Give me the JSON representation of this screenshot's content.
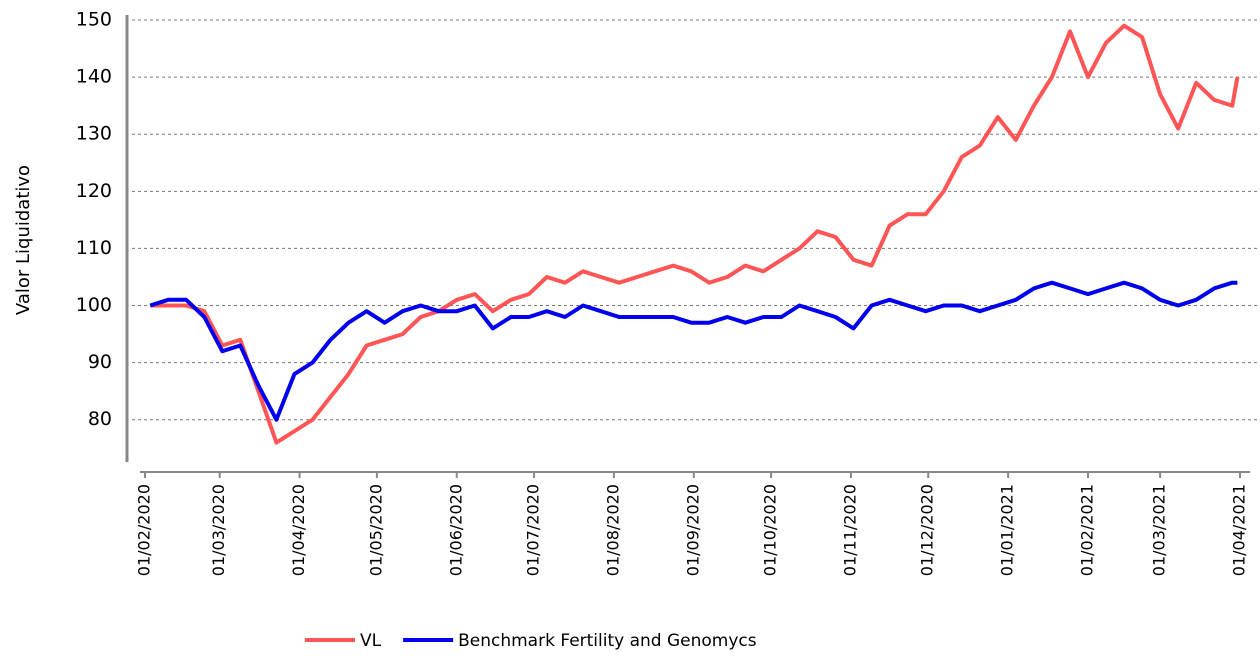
{
  "chart_data": {
    "type": "line",
    "y_label": "Valor Liquidativo",
    "x": [
      "03/02/2020",
      "10/02/2020",
      "17/02/2020",
      "24/02/2020",
      "02/03/2020",
      "09/03/2020",
      "16/03/2020",
      "23/03/2020",
      "30/03/2020",
      "06/04/2020",
      "13/04/2020",
      "20/04/2020",
      "27/04/2020",
      "04/05/2020",
      "11/05/2020",
      "18/05/2020",
      "25/05/2020",
      "01/06/2020",
      "08/06/2020",
      "15/06/2020",
      "22/06/2020",
      "29/06/2020",
      "06/07/2020",
      "13/07/2020",
      "20/07/2020",
      "27/07/2020",
      "03/08/2020",
      "10/08/2020",
      "17/08/2020",
      "24/08/2020",
      "31/08/2020",
      "07/09/2020",
      "14/09/2020",
      "21/09/2020",
      "28/09/2020",
      "05/10/2020",
      "12/10/2020",
      "19/10/2020",
      "26/10/2020",
      "02/11/2020",
      "09/11/2020",
      "16/11/2020",
      "23/11/2020",
      "30/11/2020",
      "07/12/2020",
      "14/12/2020",
      "21/12/2020",
      "28/12/2020",
      "04/01/2021",
      "11/01/2021",
      "18/01/2021",
      "25/01/2021",
      "01/02/2021",
      "08/02/2021",
      "15/02/2021",
      "22/02/2021",
      "01/03/2021",
      "08/03/2021",
      "15/03/2021",
      "22/03/2021",
      "29/03/2021",
      "31/03/2021"
    ],
    "series": [
      {
        "name": "VL",
        "color": "#ff5555",
        "values": [
          100,
          100,
          100,
          99,
          93,
          94,
          85,
          76,
          78,
          80,
          84,
          88,
          93,
          94,
          95,
          98,
          99,
          101,
          102,
          99,
          101,
          102,
          105,
          104,
          106,
          105,
          104,
          105,
          106,
          107,
          106,
          104,
          105,
          107,
          106,
          108,
          110,
          113,
          112,
          108,
          107,
          114,
          116,
          116,
          120,
          126,
          128,
          133,
          129,
          135,
          140,
          148,
          140,
          146,
          149,
          147,
          137,
          131,
          139,
          136,
          135,
          140
        ]
      },
      {
        "name": "Benchmark Fertility and Genomycs",
        "color": "#0000ee",
        "values": [
          100,
          101,
          101,
          98,
          92,
          93,
          86,
          80,
          88,
          90,
          94,
          97,
          99,
          97,
          99,
          100,
          99,
          99,
          100,
          96,
          98,
          98,
          99,
          98,
          100,
          99,
          98,
          98,
          98,
          98,
          97,
          97,
          98,
          97,
          98,
          98,
          100,
          99,
          98,
          96,
          100,
          101,
          100,
          99,
          100,
          100,
          99,
          100,
          101,
          103,
          104,
          103,
          102,
          103,
          104,
          103,
          101,
          100,
          101,
          103,
          104,
          104
        ]
      }
    ],
    "xlim": [
      "01/02/2020",
      "01/04/2021"
    ],
    "xticks": [
      "01/02/2020",
      "01/03/2020",
      "01/04/2020",
      "01/05/2020",
      "01/06/2020",
      "01/07/2020",
      "01/08/2020",
      "01/09/2020",
      "01/10/2020",
      "01/11/2020",
      "01/12/2020",
      "01/01/2021",
      "01/02/2021",
      "01/03/2021",
      "01/04/2021"
    ],
    "ylim": [
      72.6,
      150
    ],
    "yticks": [
      80,
      90,
      100,
      110,
      120,
      130,
      140,
      150
    ],
    "grid": true
  }
}
